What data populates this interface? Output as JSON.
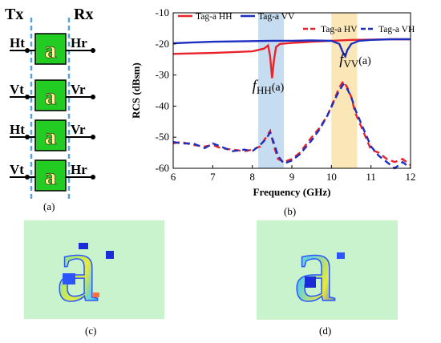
{
  "panels": {
    "a": {
      "tx_label": "Tx",
      "rx_label": "Rx",
      "tag_char": "a",
      "rows": [
        {
          "left": "Ht",
          "right": "Hr"
        },
        {
          "left": "Vt",
          "right": "Vr"
        },
        {
          "left": "Ht",
          "right": "Vr"
        },
        {
          "left": "Vt",
          "right": "Hr"
        }
      ],
      "caption": "(a)"
    },
    "b": {
      "caption": "(b)"
    },
    "c": {
      "caption": "(c)"
    },
    "d": {
      "caption": "(d)"
    }
  },
  "colors": {
    "tag_green": "#22cc22",
    "tag_yellow": "#ffff66",
    "dash_blue": "#5aa0d8",
    "hh_red": "#e8232a",
    "vv_blue": "#1d2fbf",
    "band_blue": "#c6dcf0",
    "band_orange": "#fbe6b8"
  },
  "chart_data": {
    "type": "line",
    "xlabel": "Frequency (GHz)",
    "ylabel": "RCS (dBsm)",
    "xlim": [
      6,
      12
    ],
    "ylim": [
      -60,
      -10
    ],
    "xticks": [
      6,
      7,
      8,
      9,
      10,
      11,
      12
    ],
    "yticks": [
      -10,
      -20,
      -30,
      -40,
      -50,
      -60
    ],
    "grid": false,
    "legend_position": "top",
    "series": [
      {
        "name": "Tag-a HH",
        "color": "#e8232a",
        "dash": false,
        "x": [
          6,
          7,
          8,
          8.3,
          8.4,
          8.45,
          8.5,
          8.55,
          8.6,
          8.7,
          9,
          9.5,
          10,
          10.5,
          11,
          11.5,
          12
        ],
        "y": [
          -23.2,
          -22.9,
          -22.4,
          -21.5,
          -20.5,
          -24,
          -31,
          -25,
          -21,
          -20,
          -19.7,
          -19.3,
          -19,
          -18.7,
          -18.6,
          -18.5,
          -18.5
        ]
      },
      {
        "name": "Tag-a VV",
        "color": "#1d2fbf",
        "dash": false,
        "x": [
          6,
          6.5,
          7,
          7.5,
          8,
          8.5,
          9,
          9.5,
          10,
          10.2,
          10.3,
          10.35,
          10.4,
          10.5,
          10.7,
          11,
          11.5,
          12
        ],
        "y": [
          -19.8,
          -19.5,
          -19.3,
          -19.2,
          -19.1,
          -19,
          -19,
          -18.9,
          -19,
          -20,
          -23,
          -24,
          -22,
          -20,
          -19,
          -18.7,
          -18.5,
          -18.5
        ]
      },
      {
        "name": "Tag-a HV",
        "color": "#e8232a",
        "dash": true,
        "x": [
          6,
          6.2,
          6.5,
          6.8,
          7,
          7.2,
          7.5,
          7.8,
          8,
          8.2,
          8.35,
          8.45,
          8.55,
          8.65,
          8.8,
          9,
          9.2,
          9.5,
          9.7,
          9.9,
          10.1,
          10.2,
          10.3,
          10.4,
          10.5,
          10.6,
          10.8,
          11,
          11.2,
          11.4,
          11.6,
          11.8,
          12
        ],
        "y": [
          -52,
          -51.5,
          -52.5,
          -53,
          -52.5,
          -53.5,
          -54,
          -54.5,
          -54,
          -53,
          -50,
          -48,
          -53,
          -57,
          -58,
          -57,
          -55,
          -50,
          -47,
          -43,
          -37,
          -34,
          -32,
          -34,
          -37,
          -42,
          -48,
          -54,
          -55,
          -57,
          -58,
          -57,
          -59
        ]
      },
      {
        "name": "Tag-a VH",
        "color": "#1d2fbf",
        "dash": true,
        "x": [
          6,
          6.2,
          6.5,
          6.8,
          7,
          7.2,
          7.5,
          7.8,
          8,
          8.2,
          8.35,
          8.45,
          8.55,
          8.65,
          8.8,
          9,
          9.2,
          9.5,
          9.7,
          9.9,
          10.1,
          10.2,
          10.3,
          10.4,
          10.5,
          10.6,
          10.8,
          11,
          11.2,
          11.4,
          11.6,
          11.8,
          12
        ],
        "y": [
          -51.5,
          -52,
          -52,
          -53.5,
          -52,
          -53,
          -54.5,
          -54,
          -54.5,
          -52.5,
          -50.5,
          -48.5,
          -52,
          -56,
          -58.5,
          -57.5,
          -55.5,
          -51,
          -47.5,
          -43,
          -37.5,
          -35,
          -33,
          -34.5,
          -37,
          -41,
          -47,
          -53,
          -56,
          -58,
          -60,
          -58,
          -60
        ]
      }
    ],
    "bands": [
      {
        "xmin": 8.15,
        "xmax": 8.8,
        "color": "#c6dcf0"
      },
      {
        "xmin": 10.0,
        "xmax": 10.65,
        "color": "#fbe6b8"
      }
    ],
    "annotations": [
      {
        "text_main": "f",
        "text_sub": "HH",
        "text_suffix": "(a)",
        "x": 8.0,
        "y": -35
      },
      {
        "text_main": "f",
        "text_sub": "VV",
        "text_suffix": "(a)",
        "x": 10.2,
        "y": -26.5
      }
    ]
  },
  "images": {
    "c": {
      "background": "#c8f3cc",
      "glyph": "a",
      "glyph_colors": [
        "#2b55ff",
        "#5fcfe0",
        "#9ee87a",
        "#e8ea3c",
        "#ff6f3c",
        "#1a2bd8"
      ]
    },
    "d": {
      "background": "#c8f3cc",
      "glyph": "a",
      "glyph_colors": [
        "#2b55ff",
        "#5fcfe0",
        "#9ee87a",
        "#e8ea3c",
        "#1a2bd8"
      ]
    }
  }
}
